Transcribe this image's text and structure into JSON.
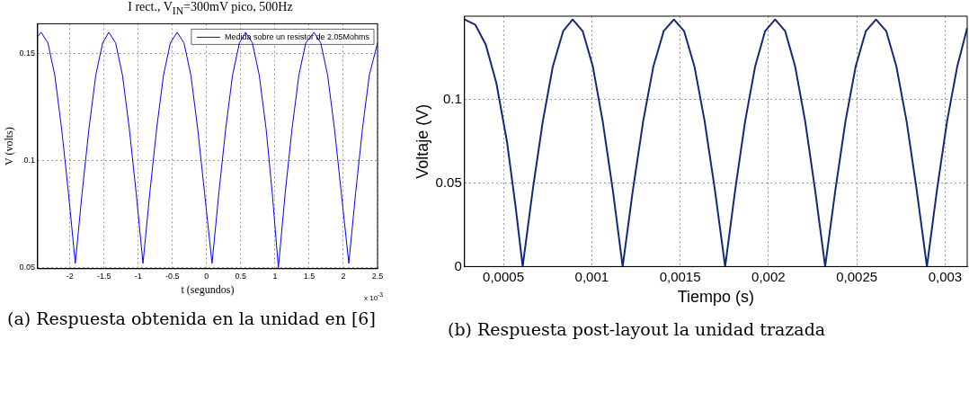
{
  "chart_data": [
    {
      "type": "line",
      "title": "I rect., V$_{IN}$=300mV pico, 500Hz",
      "subtitle": "(a) Respuesta obtenida en la unidad en [6]",
      "xlabel": "t (segundos)",
      "ylabel": "V (volts)",
      "annotations": [
        "x 10$^{-3}$"
      ],
      "x": [
        -2.47,
        -2.42,
        -2.32,
        -2.22,
        -2.12,
        -2.02,
        -1.92,
        -1.82,
        -1.72,
        -1.62,
        -1.52,
        -1.43,
        -1.33,
        -1.23,
        -1.13,
        -1.03,
        -0.93,
        -0.83,
        -0.73,
        -0.63,
        -0.53,
        -0.43,
        -0.33,
        -0.23,
        -0.13,
        -0.03,
        0.08,
        0.18,
        0.28,
        0.38,
        0.48,
        0.57,
        0.67,
        0.77,
        0.87,
        0.96,
        1.05,
        1.15,
        1.25,
        1.35,
        1.45,
        1.57,
        1.67,
        1.77,
        1.87,
        1.97,
        2.08,
        2.18,
        2.28,
        2.38,
        2.5
      ],
      "series": [
        {
          "name": "Medida sobre un resistor de 2.05Mohms",
          "color": "#0000ff",
          "values": [
            0.158,
            0.16,
            0.155,
            0.14,
            0.115,
            0.085,
            0.052,
            0.085,
            0.115,
            0.14,
            0.155,
            0.16,
            0.155,
            0.14,
            0.115,
            0.085,
            0.052,
            0.085,
            0.115,
            0.14,
            0.155,
            0.16,
            0.155,
            0.14,
            0.115,
            0.085,
            0.052,
            0.085,
            0.115,
            0.14,
            0.155,
            0.16,
            0.155,
            0.14,
            0.115,
            0.085,
            0.05,
            0.085,
            0.115,
            0.14,
            0.155,
            0.16,
            0.155,
            0.14,
            0.115,
            0.085,
            0.052,
            0.085,
            0.115,
            0.14,
            0.155
          ]
        }
      ],
      "xlim": [
        -2.47,
        2.5
      ],
      "xticks": [
        -2,
        -1.5,
        -1,
        -0.5,
        0,
        0.5,
        1,
        1.5,
        2,
        2.5
      ],
      "ylim": [
        0.0495,
        0.164
      ],
      "yticks": [
        0.05,
        0.1,
        0.15
      ],
      "grid": true,
      "legend": "top right"
    },
    {
      "type": "line",
      "subtitle": "(b) Respuesta post-layout la unidad trazada",
      "xlabel": "Tiempo (s)",
      "ylabel": "Voltaje (V)",
      "x": [
        0.00028,
        0.00034,
        0.0004,
        0.00046,
        0.00052,
        0.00057,
        0.000609,
        0.000666,
        0.000723,
        0.00078,
        0.000838,
        0.000892,
        0.000949,
        0.001006,
        0.001062,
        0.001119,
        0.001175,
        0.001233,
        0.001291,
        0.001349,
        0.001407,
        0.001465,
        0.001523,
        0.001581,
        0.001639,
        0.001697,
        0.001755,
        0.001812,
        0.001868,
        0.001925,
        0.001981,
        0.002038,
        0.002095,
        0.002151,
        0.002208,
        0.002264,
        0.002321,
        0.002379,
        0.002436,
        0.002494,
        0.002551,
        0.002609,
        0.002667,
        0.002724,
        0.002782,
        0.002839,
        0.002897,
        0.002954,
        0.003011,
        0.003069,
        0.003125
      ],
      "series": [
        {
          "color": "#14287a",
          "values": [
            0.148,
            0.145,
            0.133,
            0.11,
            0.075,
            0.035,
            0,
            0.046,
            0.087,
            0.12,
            0.141,
            0.148,
            0.141,
            0.12,
            0.087,
            0.046,
            0,
            0.046,
            0.087,
            0.12,
            0.141,
            0.148,
            0.141,
            0.12,
            0.087,
            0.046,
            0,
            0.046,
            0.087,
            0.12,
            0.141,
            0.148,
            0.141,
            0.12,
            0.087,
            0.046,
            0,
            0.046,
            0.087,
            0.12,
            0.141,
            0.148,
            0.141,
            0.12,
            0.087,
            0.046,
            0,
            0.046,
            0.087,
            0.12,
            0.143
          ]
        }
      ],
      "xlim": [
        0.00028,
        0.003125
      ],
      "xticks": [
        {
          "value": 0.0005,
          "label": "0,0005"
        },
        {
          "value": 0.001,
          "label": "0,001"
        },
        {
          "value": 0.0015,
          "label": "0,0015"
        },
        {
          "value": 0.002,
          "label": "0,002"
        },
        {
          "value": 0.0025,
          "label": "0,0025"
        },
        {
          "value": 0.003,
          "label": "0,003"
        }
      ],
      "ylim": [
        0,
        0.15
      ],
      "yticks": [
        0,
        0.05,
        0.1
      ],
      "grid": true
    }
  ]
}
